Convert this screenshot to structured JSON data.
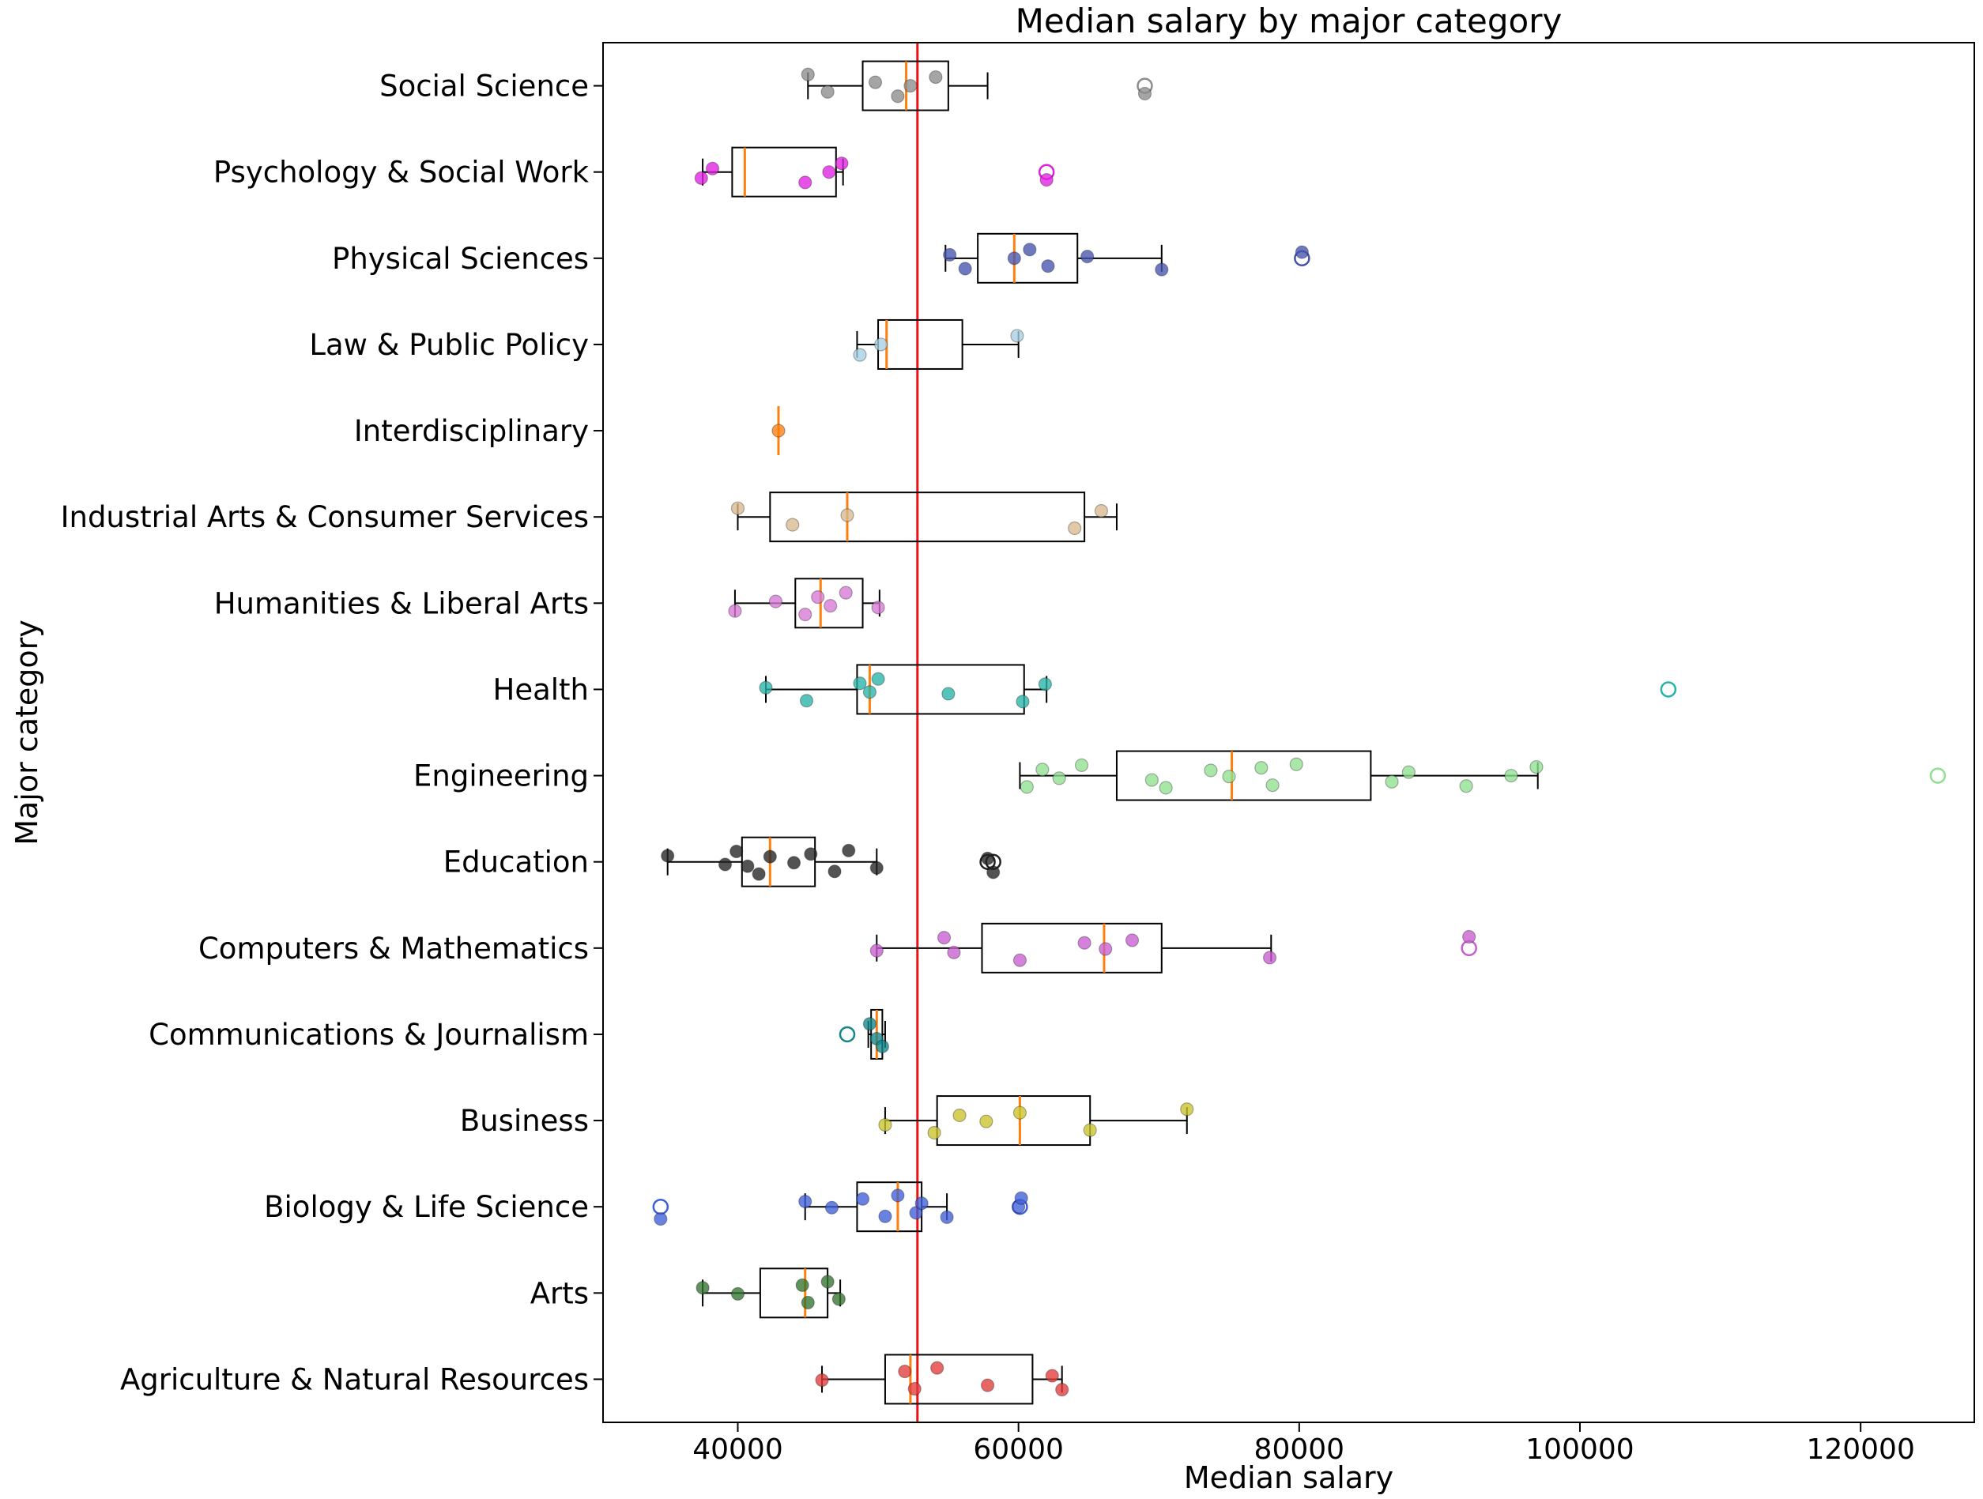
{
  "chart_data": {
    "type": "boxplot",
    "orientation": "horizontal",
    "title": "Median salary by major category",
    "xlabel": "Median salary",
    "ylabel": "Major category",
    "xlim": [
      30400,
      128100
    ],
    "xticks": [
      40000,
      60000,
      80000,
      100000,
      120000
    ],
    "grid": false,
    "background": "#ffffff",
    "reference_line": {
      "value": 52800,
      "color": "#ee1111"
    },
    "box_style": {
      "edge_color": "#000000",
      "median_color": "#ff7f0e"
    },
    "rows": [
      {
        "label": "Social Science",
        "color": "#8c8c8c",
        "whislo": 45000,
        "q1": 48900,
        "med": 52000,
        "q3": 55000,
        "whishi": 57800,
        "outliers": [
          69000
        ],
        "points": [
          45000,
          46400,
          49800,
          51400,
          52300,
          54100,
          69000
        ]
      },
      {
        "label": "Psychology & Social Work",
        "color": "#e020e0",
        "whislo": 37500,
        "q1": 39600,
        "med": 40500,
        "q3": 47000,
        "whishi": 47500,
        "outliers": [
          62000
        ],
        "points": [
          37400,
          38200,
          44800,
          46500,
          47400,
          62000
        ]
      },
      {
        "label": "Physical Sciences",
        "color": "#4553ae",
        "whislo": 54800,
        "q1": 57100,
        "med": 59700,
        "q3": 64200,
        "whishi": 70200,
        "outliers": [
          80200
        ],
        "points": [
          55100,
          56200,
          59700,
          60800,
          62100,
          64900,
          70200,
          80200
        ]
      },
      {
        "label": "Law & Public Policy",
        "color": "#a6cee3",
        "whislo": 48500,
        "q1": 50000,
        "med": 50600,
        "q3": 56000,
        "whishi": 60000,
        "outliers": [],
        "points": [
          48700,
          50200,
          59900
        ]
      },
      {
        "label": "Interdisciplinary",
        "color": "#ff7f0e",
        "whislo": 42900,
        "q1": 42900,
        "med": 42900,
        "q3": 42900,
        "whishi": 42900,
        "outliers": [],
        "points": [
          42900
        ]
      },
      {
        "label": "Industrial Arts & Consumer Services",
        "color": "#d8b98e",
        "whislo": 40000,
        "q1": 42300,
        "med": 47800,
        "q3": 64700,
        "whishi": 67000,
        "outliers": [],
        "points": [
          40000,
          43900,
          47800,
          64000,
          65900
        ]
      },
      {
        "label": "Humanities & Liberal Arts",
        "color": "#d678d6",
        "whislo": 39800,
        "q1": 44100,
        "med": 45900,
        "q3": 48900,
        "whishi": 50100,
        "outliers": [],
        "points": [
          39800,
          42700,
          44800,
          45700,
          46600,
          47700,
          50000
        ]
      },
      {
        "label": "Health",
        "color": "#26b3a7",
        "whislo": 42000,
        "q1": 48500,
        "med": 49400,
        "q3": 60400,
        "whishi": 62000,
        "outliers": [
          106300
        ],
        "points": [
          42000,
          44900,
          48700,
          49400,
          50000,
          55000,
          60300,
          61900
        ]
      },
      {
        "label": "Engineering",
        "color": "#8fe08f",
        "whislo": 60100,
        "q1": 67000,
        "med": 75200,
        "q3": 85100,
        "whishi": 97000,
        "outliers": [
          125500
        ],
        "points": [
          60600,
          61700,
          62900,
          64500,
          69500,
          70500,
          73700,
          75000,
          77300,
          78100,
          79800,
          86600,
          87800,
          91900,
          95100,
          96900
        ]
      },
      {
        "label": "Education",
        "color": "#222222",
        "whislo": 35000,
        "q1": 40300,
        "med": 42300,
        "q3": 45500,
        "whishi": 49900,
        "outliers": [
          57800,
          58200
        ],
        "points": [
          35000,
          39100,
          39900,
          40700,
          41500,
          42300,
          44000,
          45200,
          46900,
          47900,
          49900,
          57800,
          58200
        ]
      },
      {
        "label": "Computers & Mathematics",
        "color": "#c65ecf",
        "whislo": 49900,
        "q1": 57400,
        "med": 66100,
        "q3": 70200,
        "whishi": 78000,
        "outliers": [
          92100
        ],
        "points": [
          49900,
          54700,
          55400,
          60100,
          64700,
          66200,
          68100,
          77900,
          92100
        ]
      },
      {
        "label": "Communications & Journalism",
        "color": "#11878a",
        "whislo": 49300,
        "q1": 49500,
        "med": 49900,
        "q3": 50300,
        "whishi": 50500,
        "outliers": [
          47800
        ],
        "points": [
          49400,
          49900,
          50300
        ]
      },
      {
        "label": "Business",
        "color": "#c9c32b",
        "whislo": 50500,
        "q1": 54200,
        "med": 60100,
        "q3": 65100,
        "whishi": 72000,
        "outliers": [],
        "points": [
          50500,
          54000,
          55800,
          57700,
          60100,
          65100,
          72000
        ]
      },
      {
        "label": "Biology & Life Science",
        "color": "#3f5fd7",
        "whislo": 44800,
        "q1": 48500,
        "med": 51400,
        "q3": 53100,
        "whishi": 54900,
        "outliers": [
          34500,
          60100
        ],
        "points": [
          34500,
          44800,
          46700,
          48900,
          50500,
          51400,
          52700,
          53100,
          54900,
          60000,
          60200
        ]
      },
      {
        "label": "Arts",
        "color": "#33732f",
        "whislo": 37500,
        "q1": 41600,
        "med": 44800,
        "q3": 46400,
        "whishi": 47300,
        "outliers": [],
        "points": [
          37500,
          40000,
          44600,
          45000,
          46400,
          47200
        ]
      },
      {
        "label": "Agriculture & Natural Resources",
        "color": "#e23b3b",
        "whislo": 46000,
        "q1": 50500,
        "med": 52300,
        "q3": 61000,
        "whishi": 63100,
        "outliers": [],
        "points": [
          46000,
          51900,
          52600,
          54200,
          57800,
          62400,
          63100
        ]
      }
    ]
  }
}
